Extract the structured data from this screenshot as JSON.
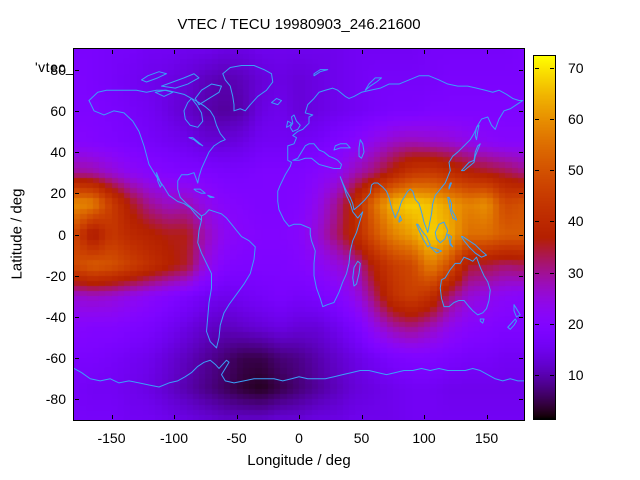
{
  "title": "VTEC / TECU 19980903_246.21600",
  "overlay_label": "'vtec_",
  "colors": {
    "background": "#ffffff",
    "text": "#000000",
    "border": "#000000",
    "coastline": "#3aa0f8",
    "palette_low": "#000000",
    "palette_mid": "#8020ff",
    "palette_high": "#ffff00"
  },
  "axes": {
    "x": {
      "label": "Longitude / deg",
      "range": [
        -180,
        180
      ],
      "ticks": [
        {
          "v": -150,
          "label": "-150"
        },
        {
          "v": -100,
          "label": "-100"
        },
        {
          "v": -50,
          "label": "-50"
        },
        {
          "v": 0,
          "label": "0"
        },
        {
          "v": 50,
          "label": "50"
        },
        {
          "v": 100,
          "label": "100"
        },
        {
          "v": 150,
          "label": "150"
        }
      ]
    },
    "y": {
      "label": "Latitude / deg",
      "range": [
        -90,
        90
      ],
      "ticks": [
        {
          "v": 80,
          "label": "80"
        },
        {
          "v": 60,
          "label": "60"
        },
        {
          "v": 40,
          "label": "40"
        },
        {
          "v": 20,
          "label": "20"
        },
        {
          "v": 0,
          "label": "0"
        },
        {
          "v": -20,
          "label": "-20"
        },
        {
          "v": -40,
          "label": "-40"
        },
        {
          "v": -60,
          "label": "-60"
        },
        {
          "v": -80,
          "label": "-80"
        }
      ]
    },
    "colorbar": {
      "range": [
        1.6,
        72.3
      ],
      "ticks": [
        {
          "v": 10,
          "label": "10"
        },
        {
          "v": 20,
          "label": "20"
        },
        {
          "v": 30,
          "label": "30"
        },
        {
          "v": 40,
          "label": "40"
        },
        {
          "v": 50,
          "label": "50"
        },
        {
          "v": 60,
          "label": "60"
        },
        {
          "v": 70,
          "label": "70"
        }
      ]
    }
  },
  "chart_data": {
    "type": "heatmap",
    "title": "VTEC / TECU 19980903_246.21600",
    "xlabel": "Longitude / deg",
    "ylabel": "Latitude / deg",
    "units": "TECU",
    "palette": "gnuplot pm3d traditional (black-violet-red-orange-yellow)",
    "cb_min": 1.6,
    "cb_max": 72.3,
    "lats": [
      90,
      75,
      60,
      45,
      30,
      15,
      0,
      -15,
      -30,
      -45,
      -60,
      -75,
      -90
    ],
    "lons": [
      -180,
      -165,
      -150,
      -135,
      -120,
      -105,
      -90,
      -75,
      -60,
      -45,
      -30,
      -15,
      0,
      15,
      30,
      45,
      60,
      75,
      90,
      105,
      120,
      135,
      150,
      165,
      180
    ],
    "values": [
      [
        18,
        18,
        17,
        17,
        16,
        16,
        15,
        15,
        14,
        14,
        15,
        15,
        15,
        15,
        15,
        16,
        16,
        16,
        16,
        17,
        17,
        17,
        17,
        17,
        18
      ],
      [
        19,
        18,
        17,
        16,
        15,
        14,
        13,
        11,
        10,
        11,
        13,
        14,
        13,
        14,
        15,
        16,
        17,
        17,
        17,
        17,
        18,
        18,
        18,
        18,
        18
      ],
      [
        19,
        19,
        18,
        17,
        16,
        14,
        12,
        10,
        9,
        10,
        14,
        15,
        13,
        14,
        15,
        16,
        17,
        18,
        18,
        19,
        19,
        19,
        19,
        19,
        19
      ],
      [
        21,
        20,
        19,
        18,
        17,
        16,
        15,
        13,
        13,
        14,
        16,
        16,
        16,
        17,
        19,
        21,
        24,
        27,
        28,
        27,
        26,
        24,
        22,
        21,
        21
      ],
      [
        30,
        29,
        26,
        23,
        21,
        20,
        19,
        19,
        18,
        18,
        19,
        19,
        19,
        21,
        23,
        28,
        32,
        38,
        44,
        45,
        42,
        38,
        36,
        34,
        31
      ],
      [
        60,
        58,
        45,
        36,
        30,
        27,
        28,
        24,
        21,
        20,
        19,
        19,
        20,
        24,
        30,
        40,
        55,
        65,
        68,
        66,
        62,
        58,
        60,
        48,
        50
      ],
      [
        48,
        34,
        44,
        40,
        38,
        36,
        36,
        28,
        23,
        21,
        20,
        20,
        21,
        26,
        32,
        40,
        50,
        58,
        62,
        68,
        64,
        55,
        55,
        52,
        52
      ],
      [
        48,
        52,
        50,
        46,
        42,
        38,
        35,
        25,
        20,
        19,
        19,
        19,
        20,
        22,
        25,
        28,
        38,
        45,
        48,
        58,
        50,
        35,
        34,
        32,
        33
      ],
      [
        26,
        27,
        26,
        24,
        22,
        20,
        18,
        16,
        15,
        16,
        17,
        18,
        17,
        18,
        20,
        24,
        32,
        42,
        46,
        42,
        32,
        26,
        24,
        22,
        21
      ],
      [
        21,
        20,
        20,
        19,
        18,
        16,
        14,
        12,
        11,
        12,
        13,
        14,
        13,
        13,
        15,
        18,
        24,
        29,
        31,
        28,
        24,
        21,
        20,
        19,
        19
      ],
      [
        18,
        18,
        17,
        16,
        15,
        13,
        11,
        9,
        7,
        5,
        5,
        7,
        8,
        10,
        12,
        14,
        16,
        18,
        19,
        19,
        18,
        17,
        17,
        16,
        16
      ],
      [
        17,
        16,
        16,
        15,
        14,
        12,
        10,
        8,
        6,
        4,
        3,
        5,
        7,
        9,
        11,
        13,
        14,
        15,
        16,
        16,
        15,
        15,
        15,
        15,
        15
      ],
      [
        17,
        17,
        17,
        16,
        16,
        15,
        14,
        13,
        12,
        12,
        12,
        13,
        13,
        14,
        14,
        15,
        15,
        15,
        16,
        16,
        16,
        16,
        16,
        16,
        16
      ]
    ]
  }
}
